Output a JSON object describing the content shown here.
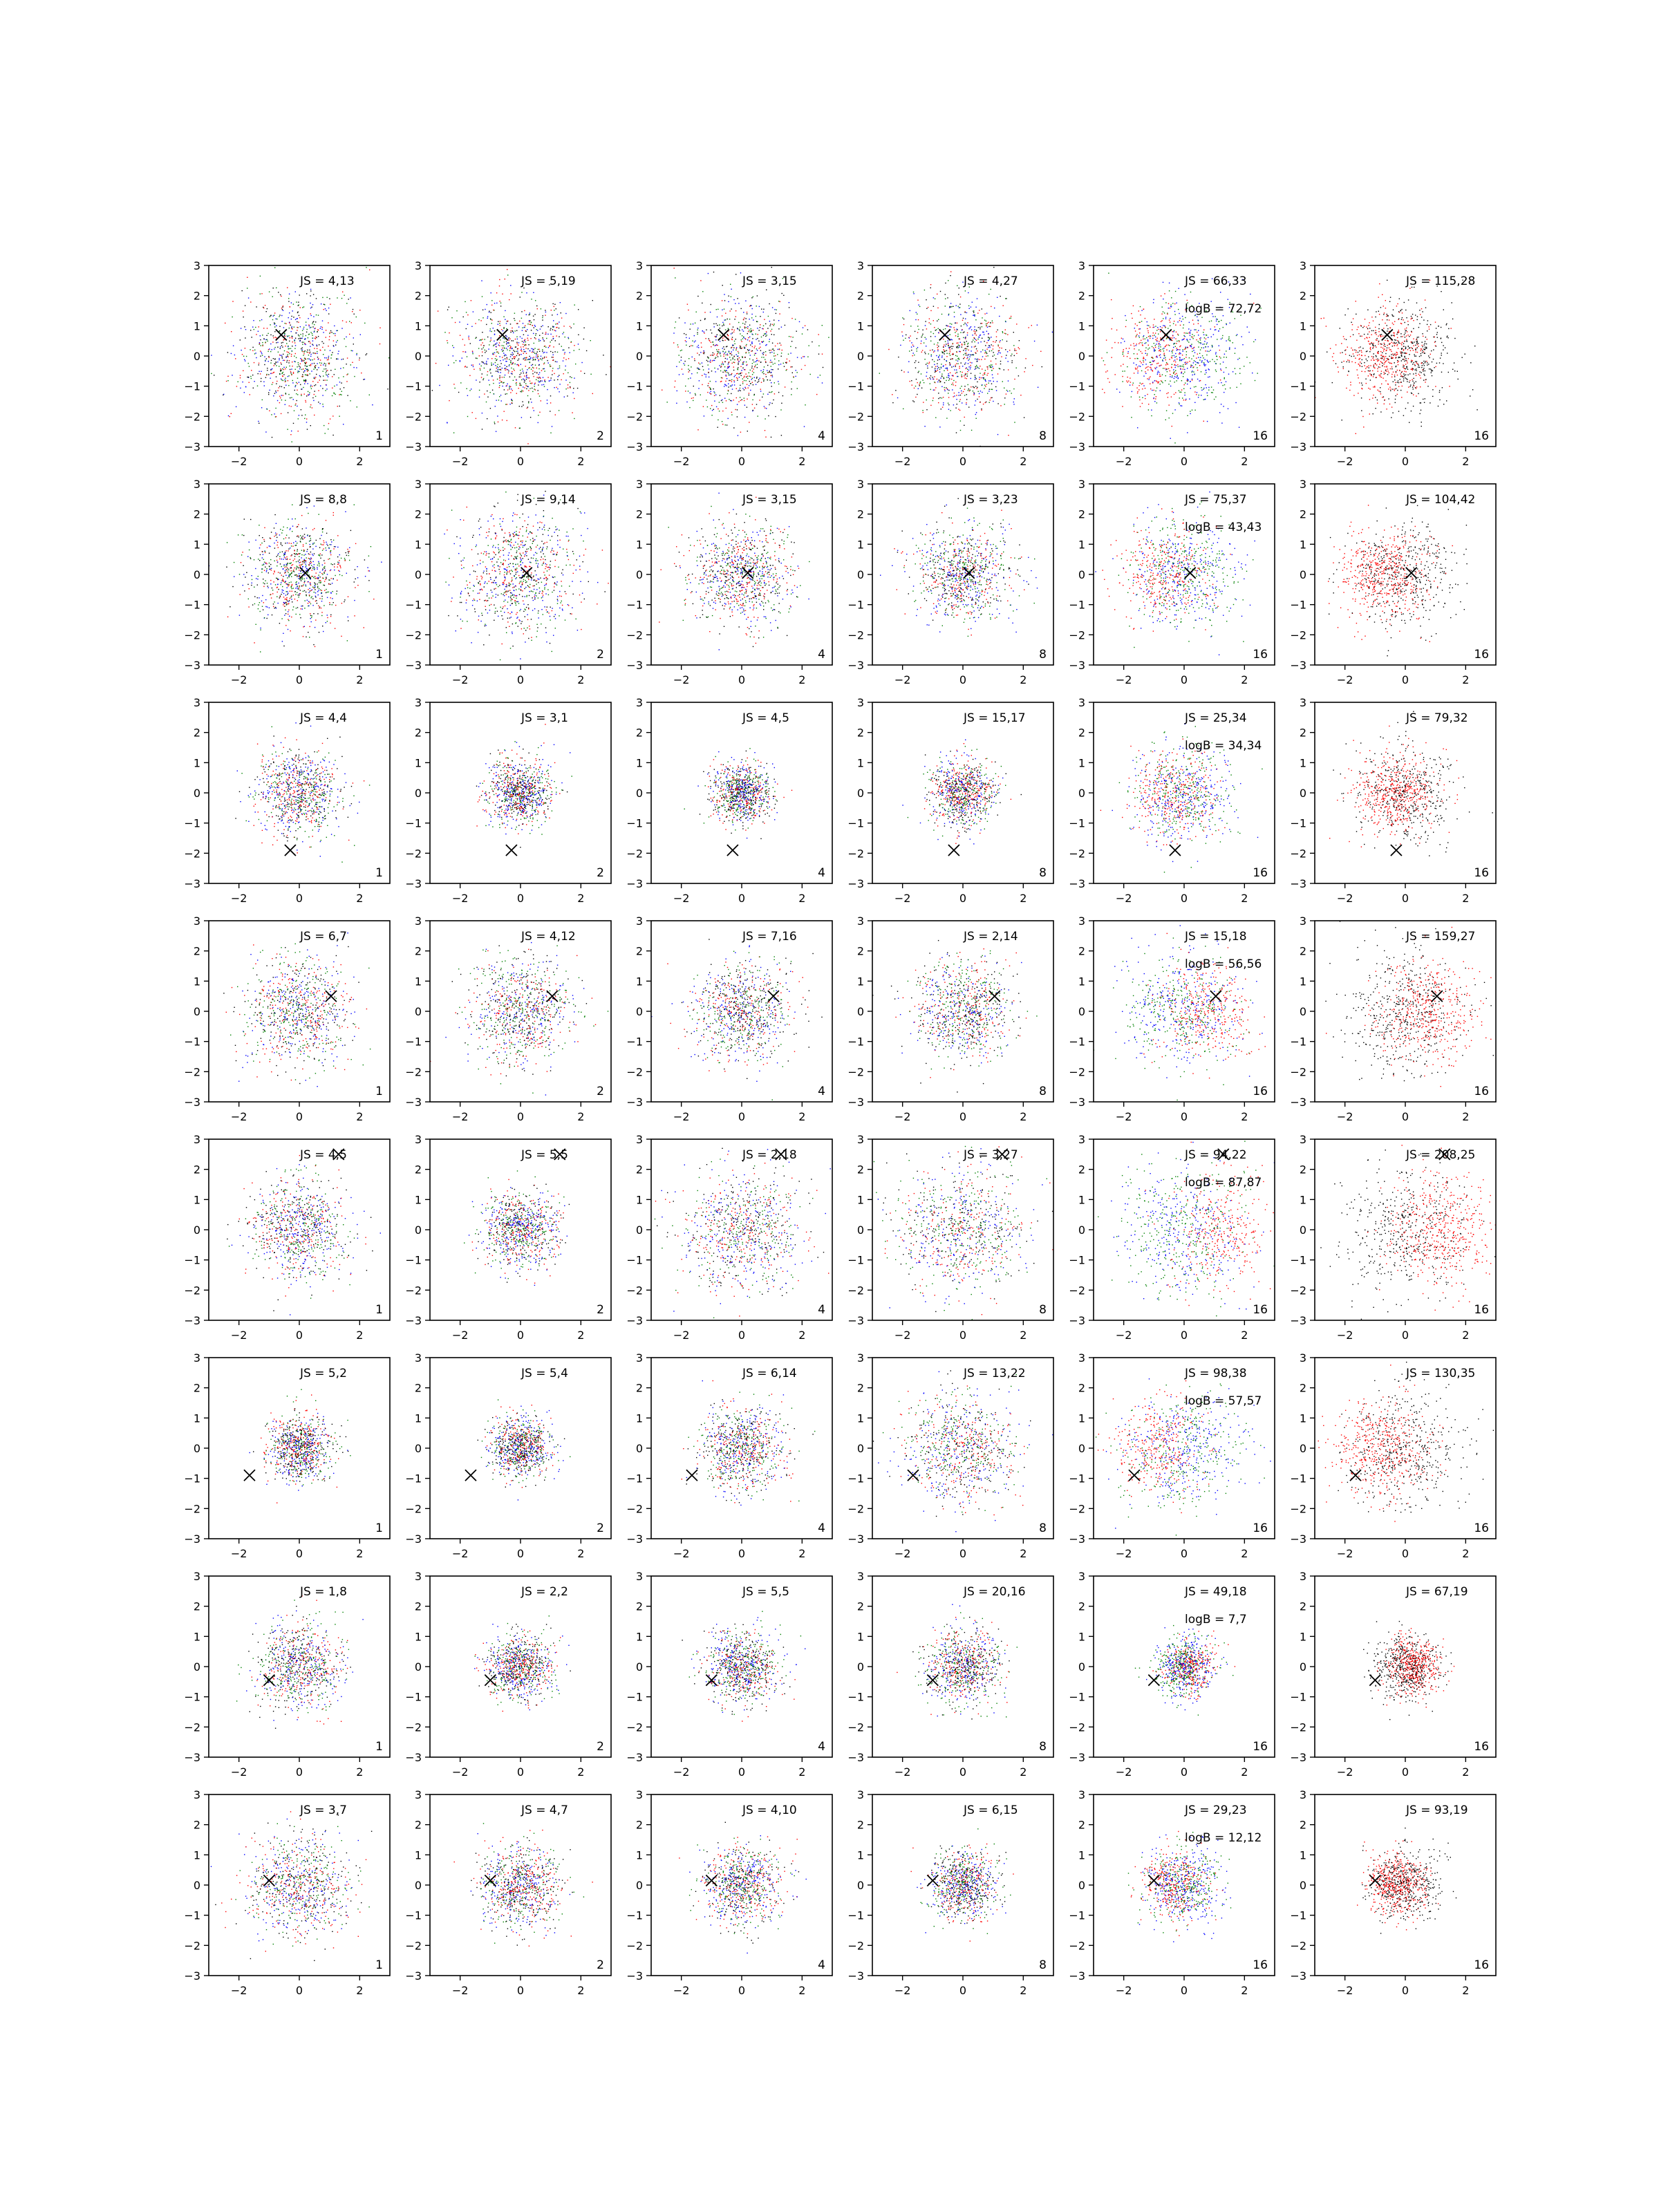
{
  "figure": {
    "layout": "8 rows x 6 columns grid of scatter panels",
    "background": "#ffffff",
    "point_colors": {
      "red": "#ff0000",
      "green": "#008000",
      "blue": "#0000ff",
      "black": "#000000"
    },
    "marker_color": "#000000"
  },
  "chart_data": {
    "type": "scatter",
    "xlim": [
      -3,
      3
    ],
    "ylim": [
      -3,
      3
    ],
    "xticks": [
      "−2",
      "0",
      "2"
    ],
    "yticks": [
      "3",
      "2",
      "1",
      "0",
      "−1",
      "−2",
      "−3"
    ],
    "grid": false,
    "legend": "none",
    "column_corner_labels": [
      "1",
      "2",
      "4",
      "8",
      "16",
      "16"
    ],
    "column_palettes": [
      [
        "#ff0000",
        "#008000",
        "#0000ff",
        "#000000"
      ],
      [
        "#ff0000",
        "#008000",
        "#0000ff",
        "#000000"
      ],
      [
        "#ff0000",
        "#008000",
        "#0000ff",
        "#000000"
      ],
      [
        "#ff0000",
        "#008000",
        "#0000ff",
        "#000000"
      ],
      [
        "#ff0000",
        "#008000",
        "#0000ff"
      ],
      [
        "#ff0000",
        "#000000"
      ]
    ],
    "rows": [
      {
        "marker": [
          -0.6,
          0.7
        ],
        "js": [
          "JS = 4,13",
          "JS = 5,19",
          "JS = 3,15",
          "JS = 4,27",
          "JS = 66,33",
          "JS = 115,28"
        ],
        "logb": "logB = 72,72",
        "spread": [
          1.0,
          1.0,
          1.0,
          1.0,
          1.0,
          0.9
        ],
        "red_shift": [
          -1.4,
          0
        ]
      },
      {
        "marker": [
          0.2,
          0.05
        ],
        "js": [
          "JS = 8,8",
          "JS = 9,14",
          "JS = 3,15",
          "JS = 3,23",
          "JS = 75,37",
          "JS = 104,42"
        ],
        "logb": "logB = 43,43",
        "spread": [
          0.85,
          1.0,
          0.85,
          0.8,
          0.9,
          0.9
        ],
        "red_shift": [
          -1.2,
          0
        ]
      },
      {
        "marker": [
          -0.3,
          -1.9
        ],
        "js": [
          "JS = 4,4",
          "JS = 3,1",
          "JS = 4,5",
          "JS = 15,17",
          "JS = 25,34",
          "JS = 79,32"
        ],
        "logb": "logB = 34,34",
        "spread": [
          0.7,
          0.55,
          0.5,
          0.55,
          0.8,
          0.8
        ],
        "red_shift": [
          -0.6,
          0
        ]
      },
      {
        "marker": [
          1.05,
          0.5
        ],
        "js": [
          "JS = 6,7",
          "JS = 4,12",
          "JS = 7,16",
          "JS = 2,14",
          "JS = 15,18",
          "JS = 159,27"
        ],
        "logb": "logB = 56,56",
        "spread": [
          0.9,
          0.85,
          0.8,
          0.8,
          0.95,
          0.95
        ],
        "red_shift": [
          1.3,
          0
        ]
      },
      {
        "marker": [
          1.3,
          2.5
        ],
        "js": [
          "JS = 4,5",
          "JS = 5,5",
          "JS = 2,18",
          "JS = 3,27",
          "JS = 94,22",
          "JS = 208,25"
        ],
        "logb": "logB = 87,87",
        "spread": [
          0.8,
          0.65,
          1.0,
          1.05,
          1.05,
          1.05
        ],
        "red_shift": [
          2.2,
          0
        ]
      },
      {
        "marker": [
          -1.65,
          -0.9
        ],
        "js": [
          "JS = 5,2",
          "JS = 5,4",
          "JS = 6,14",
          "JS = 13,22",
          "JS = 98,38",
          "JS = 130,35"
        ],
        "logb": "logB = 57,57",
        "spread": [
          0.55,
          0.5,
          0.7,
          0.9,
          0.95,
          0.95
        ],
        "red_shift": [
          -1.5,
          0
        ]
      },
      {
        "marker": [
          -1.0,
          -0.45
        ],
        "js": [
          "JS = 1,8",
          "JS = 2,2",
          "JS = 5,5",
          "JS = 20,16",
          "JS = 49,18",
          "JS = 67,19"
        ],
        "logb": "logB = 7,7",
        "spread": [
          0.7,
          0.55,
          0.6,
          0.6,
          0.5,
          0.55
        ],
        "red_shift": [
          0.4,
          0
        ]
      },
      {
        "marker": [
          -1.0,
          0.15
        ],
        "js": [
          "JS = 3,7",
          "JS = 4,7",
          "JS = 4,10",
          "JS = 6,15",
          "JS = 29,23",
          "JS = 93,19"
        ],
        "logb": "logB = 12,12",
        "spread": [
          0.85,
          0.7,
          0.65,
          0.55,
          0.65,
          0.6
        ],
        "red_shift": [
          -0.6,
          0
        ]
      }
    ]
  }
}
